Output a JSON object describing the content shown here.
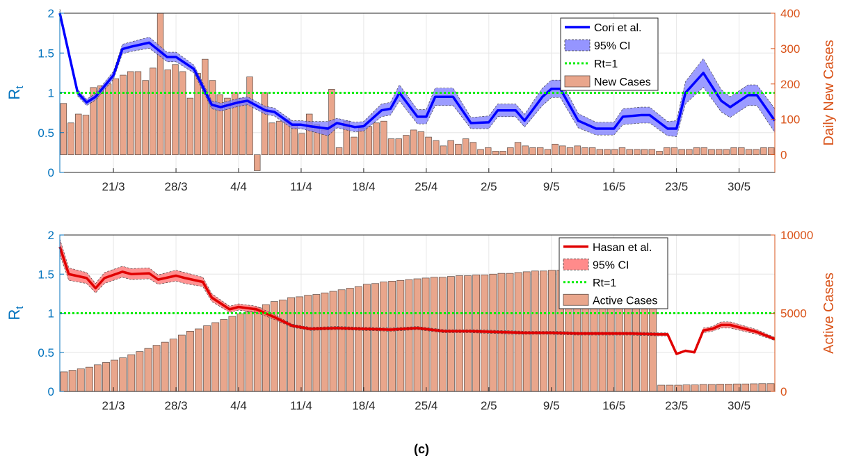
{
  "caption": "(c)",
  "colors": {
    "left_axis": "#0072BD",
    "right_axis": "#D95319",
    "bars": "#E9A68C",
    "bar_edge": "#5a4a44",
    "cori_line": "#0000FF",
    "cori_ci": "#7B7BFF",
    "hasan_line": "#E00000",
    "hasan_ci": "#FF6E6E",
    "threshold": "#00EE00",
    "grid": "#E6E6E6"
  },
  "chart_data": [
    {
      "type": "line",
      "name": "top",
      "start_date": "2020-03-15",
      "end_date": "2020-06-03",
      "x_tick_labels": [
        "21/3",
        "28/3",
        "4/4",
        "11/4",
        "18/4",
        "25/4",
        "2/5",
        "9/5",
        "16/5",
        "23/5",
        "30/5"
      ],
      "x_tick_dates": [
        "2020-03-21",
        "2020-03-28",
        "2020-04-04",
        "2020-04-11",
        "2020-04-18",
        "2020-04-25",
        "2020-05-02",
        "2020-05-09",
        "2020-05-16",
        "2020-05-23",
        "2020-05-30"
      ],
      "ylabel_left": "R",
      "ylabel_left_sub": "t",
      "ylabel_right": "Daily New Cases",
      "ylim_left": [
        0,
        2
      ],
      "yticks_left": [
        "0",
        "0.5",
        "1",
        "1.5",
        "2"
      ],
      "ylim_right": [
        -50,
        400
      ],
      "yticks_right": [
        "0",
        "100",
        "200",
        "300",
        "400"
      ],
      "grid": true,
      "legend_position": "top-right",
      "legend": [
        "Cori et al.",
        "95% CI",
        "Rt=1",
        "New Cases"
      ],
      "threshold": 1,
      "line_dates": [
        "2020-03-15",
        "2020-03-17",
        "2020-03-18",
        "2020-03-19",
        "2020-03-21",
        "2020-03-22",
        "2020-03-23",
        "2020-03-25",
        "2020-03-27",
        "2020-03-28",
        "2020-03-30",
        "2020-04-01",
        "2020-04-02",
        "2020-04-04",
        "2020-04-05",
        "2020-04-07",
        "2020-04-08",
        "2020-04-10",
        "2020-04-11",
        "2020-04-12",
        "2020-04-14",
        "2020-04-15",
        "2020-04-17",
        "2020-04-18",
        "2020-04-20",
        "2020-04-21",
        "2020-04-22",
        "2020-04-24",
        "2020-04-25",
        "2020-04-26",
        "2020-04-28",
        "2020-04-30",
        "2020-05-02",
        "2020-05-03",
        "2020-05-05",
        "2020-05-06",
        "2020-05-08",
        "2020-05-09",
        "2020-05-10",
        "2020-05-12",
        "2020-05-14",
        "2020-05-16",
        "2020-05-17",
        "2020-05-19",
        "2020-05-20",
        "2020-05-22",
        "2020-05-23",
        "2020-05-24",
        "2020-05-26",
        "2020-05-28",
        "2020-05-29",
        "2020-05-31",
        "2020-06-01",
        "2020-06-03"
      ],
      "line_values": [
        2.0,
        1.0,
        0.88,
        0.95,
        1.22,
        1.55,
        1.58,
        1.63,
        1.45,
        1.45,
        1.3,
        0.85,
        0.82,
        0.88,
        0.9,
        0.78,
        0.76,
        0.6,
        0.6,
        0.58,
        0.55,
        0.62,
        0.57,
        0.58,
        0.78,
        0.8,
        1.0,
        0.7,
        0.7,
        0.95,
        0.95,
        0.62,
        0.63,
        0.78,
        0.78,
        0.65,
        0.95,
        1.05,
        1.05,
        0.65,
        0.55,
        0.55,
        0.7,
        0.72,
        0.72,
        0.55,
        0.55,
        1.0,
        1.25,
        0.9,
        0.82,
        0.97,
        0.97,
        0.65
      ],
      "ci_lower": [
        1.95,
        0.96,
        0.84,
        0.91,
        1.17,
        1.49,
        1.52,
        1.56,
        1.39,
        1.39,
        1.25,
        0.8,
        0.77,
        0.83,
        0.85,
        0.73,
        0.71,
        0.55,
        0.55,
        0.52,
        0.46,
        0.56,
        0.51,
        0.52,
        0.7,
        0.72,
        0.9,
        0.61,
        0.61,
        0.84,
        0.84,
        0.55,
        0.55,
        0.7,
        0.7,
        0.57,
        0.84,
        0.94,
        0.94,
        0.56,
        0.47,
        0.47,
        0.6,
        0.62,
        0.62,
        0.46,
        0.45,
        0.86,
        1.07,
        0.76,
        0.69,
        0.84,
        0.84,
        0.5
      ],
      "ci_upper": [
        2.05,
        1.04,
        0.92,
        0.99,
        1.27,
        1.61,
        1.64,
        1.7,
        1.51,
        1.51,
        1.35,
        0.9,
        0.87,
        0.93,
        0.95,
        0.83,
        0.81,
        0.65,
        0.65,
        0.64,
        0.64,
        0.68,
        0.63,
        0.64,
        0.86,
        0.88,
        1.1,
        0.79,
        0.79,
        1.06,
        1.06,
        0.69,
        0.71,
        0.86,
        0.86,
        0.73,
        1.06,
        1.16,
        1.16,
        0.74,
        0.63,
        0.63,
        0.8,
        0.82,
        0.82,
        0.64,
        0.65,
        1.14,
        1.43,
        1.04,
        0.95,
        1.1,
        1.1,
        0.8
      ],
      "bar_values": [
        145,
        90,
        115,
        112,
        190,
        195,
        200,
        215,
        225,
        235,
        235,
        210,
        245,
        400,
        240,
        255,
        235,
        160,
        230,
        270,
        210,
        170,
        160,
        175,
        160,
        220,
        -45,
        175,
        90,
        95,
        100,
        85,
        60,
        115,
        85,
        70,
        185,
        20,
        95,
        50,
        75,
        80,
        90,
        95,
        45,
        45,
        55,
        70,
        65,
        50,
        40,
        25,
        40,
        30,
        45,
        35,
        15,
        20,
        10,
        10,
        20,
        35,
        25,
        20,
        20,
        15,
        30,
        25,
        20,
        25,
        20,
        20,
        15,
        15,
        15,
        20,
        15,
        15,
        15,
        15,
        10,
        20,
        20,
        15,
        15,
        20,
        20,
        15,
        15,
        15,
        20,
        20,
        15,
        15,
        20,
        20
      ]
    },
    {
      "type": "line",
      "name": "bottom",
      "start_date": "2020-03-15",
      "end_date": "2020-06-03",
      "x_tick_labels": [
        "21/3",
        "28/3",
        "4/4",
        "11/4",
        "18/4",
        "25/4",
        "2/5",
        "9/5",
        "16/5",
        "23/5",
        "30/5"
      ],
      "x_tick_dates": [
        "2020-03-21",
        "2020-03-28",
        "2020-04-04",
        "2020-04-11",
        "2020-04-18",
        "2020-04-25",
        "2020-05-02",
        "2020-05-09",
        "2020-05-16",
        "2020-05-23",
        "2020-05-30"
      ],
      "ylabel_left": "R",
      "ylabel_left_sub": "t",
      "ylabel_right": "Active Cases",
      "ylim_left": [
        0,
        2
      ],
      "yticks_left": [
        "0",
        "0.5",
        "1",
        "1.5",
        "2"
      ],
      "ylim_right": [
        0,
        10000
      ],
      "yticks_right": [
        "0",
        "5000",
        "10000"
      ],
      "grid": true,
      "legend_position": "top-right",
      "legend": [
        "Hasan et al.",
        "95% CI",
        "Rt=1",
        "Active Cases"
      ],
      "threshold": 1,
      "line_dates": [
        "2020-03-15",
        "2020-03-16",
        "2020-03-18",
        "2020-03-19",
        "2020-03-20",
        "2020-03-22",
        "2020-03-23",
        "2020-03-25",
        "2020-03-26",
        "2020-03-28",
        "2020-03-29",
        "2020-03-31",
        "2020-04-01",
        "2020-04-03",
        "2020-04-04",
        "2020-04-06",
        "2020-04-08",
        "2020-04-10",
        "2020-04-12",
        "2020-04-15",
        "2020-04-18",
        "2020-04-21",
        "2020-04-24",
        "2020-04-27",
        "2020-04-30",
        "2020-05-03",
        "2020-05-06",
        "2020-05-09",
        "2020-05-12",
        "2020-05-15",
        "2020-05-18",
        "2020-05-21",
        "2020-05-22",
        "2020-05-23",
        "2020-05-24",
        "2020-05-25",
        "2020-05-26",
        "2020-05-27",
        "2020-05-28",
        "2020-05-29",
        "2020-06-01",
        "2020-06-03"
      ],
      "line_values": [
        1.85,
        1.5,
        1.45,
        1.32,
        1.45,
        1.53,
        1.5,
        1.51,
        1.43,
        1.48,
        1.45,
        1.4,
        1.2,
        1.05,
        1.08,
        1.05,
        0.95,
        0.84,
        0.8,
        0.81,
        0.8,
        0.79,
        0.81,
        0.77,
        0.77,
        0.76,
        0.75,
        0.75,
        0.74,
        0.74,
        0.74,
        0.73,
        0.73,
        0.48,
        0.52,
        0.5,
        0.78,
        0.8,
        0.85,
        0.85,
        0.76,
        0.67
      ],
      "ci_lower": [
        1.75,
        1.42,
        1.38,
        1.26,
        1.38,
        1.46,
        1.43,
        1.44,
        1.37,
        1.41,
        1.38,
        1.34,
        1.15,
        1.01,
        1.04,
        1.01,
        0.92,
        0.82,
        0.78,
        0.79,
        0.78,
        0.77,
        0.79,
        0.75,
        0.75,
        0.74,
        0.73,
        0.73,
        0.72,
        0.72,
        0.72,
        0.71,
        0.71,
        0.47,
        0.51,
        0.49,
        0.75,
        0.77,
        0.81,
        0.81,
        0.73,
        0.65
      ],
      "ci_upper": [
        1.95,
        1.58,
        1.52,
        1.38,
        1.52,
        1.6,
        1.57,
        1.58,
        1.49,
        1.55,
        1.52,
        1.46,
        1.25,
        1.09,
        1.12,
        1.09,
        0.98,
        0.86,
        0.82,
        0.83,
        0.82,
        0.81,
        0.83,
        0.79,
        0.79,
        0.78,
        0.77,
        0.77,
        0.76,
        0.76,
        0.76,
        0.75,
        0.75,
        0.49,
        0.53,
        0.51,
        0.81,
        0.83,
        0.89,
        0.89,
        0.79,
        0.69
      ],
      "bar_values": [
        1250,
        1350,
        1450,
        1550,
        1700,
        1850,
        2000,
        2150,
        2350,
        2550,
        2750,
        2950,
        3150,
        3350,
        3600,
        3850,
        4000,
        4200,
        4400,
        4600,
        4800,
        4950,
        5100,
        5350,
        5550,
        5750,
        5850,
        6000,
        6050,
        6150,
        6200,
        6300,
        6400,
        6500,
        6600,
        6700,
        6850,
        6900,
        7000,
        7050,
        7100,
        7150,
        7200,
        7250,
        7300,
        7300,
        7350,
        7400,
        7400,
        7450,
        7450,
        7500,
        7550,
        7550,
        7600,
        7650,
        7700,
        7700,
        7750,
        7750,
        7800,
        7800,
        7850,
        7850,
        7900,
        7900,
        7950,
        7950,
        8000,
        8000,
        8000,
        400,
        400,
        400,
        420,
        420,
        450,
        450,
        470,
        470,
        480,
        480,
        490,
        500,
        500
      ]
    }
  ]
}
